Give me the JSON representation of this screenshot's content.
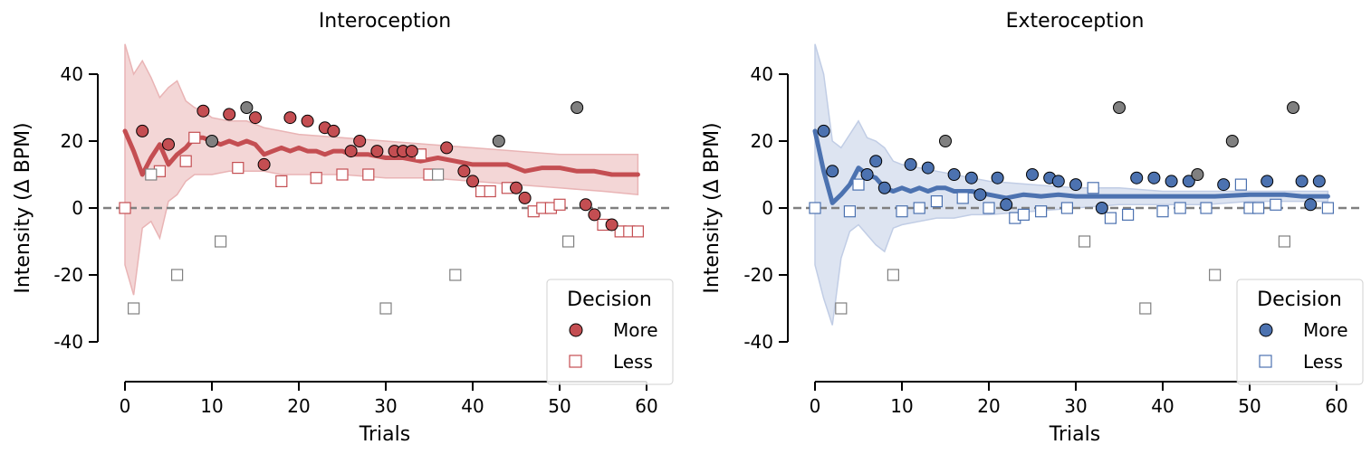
{
  "chart_data": [
    {
      "type": "scatter",
      "title": "Interoception",
      "xlabel": "Trials",
      "ylabel": "Intensity (Δ BPM)",
      "xlim": [
        -2,
        63
      ],
      "ylim": [
        -52,
        50
      ],
      "xticks": [
        0,
        10,
        20,
        30,
        40,
        50,
        60
      ],
      "yticks": [
        -40,
        -20,
        0,
        20,
        40
      ],
      "reference_line_y": 0,
      "legend": {
        "title": "Decision",
        "placement": "lower-right",
        "items": [
          "More",
          "Less"
        ]
      },
      "color": "#c44e52",
      "fill_color": "#e9b4b5",
      "gray_color": "#808080",
      "band": {
        "x": [
          0,
          1,
          2,
          3,
          4,
          5,
          6,
          7,
          8,
          9,
          10,
          12,
          14,
          16,
          18,
          20,
          25,
          30,
          35,
          40,
          45,
          50,
          55,
          59
        ],
        "upper": [
          49,
          40,
          44,
          39,
          33,
          36,
          38,
          32,
          30,
          29,
          27,
          26,
          26,
          24,
          23,
          22,
          21,
          20,
          19,
          18,
          17,
          16,
          16,
          16
        ],
        "lower": [
          -17,
          -26,
          -6,
          -4,
          -9,
          2,
          4,
          8,
          10,
          10,
          10,
          11,
          11,
          11,
          10,
          10,
          10,
          9,
          9,
          8,
          7,
          6,
          5,
          4
        ]
      },
      "mean_line": {
        "x": [
          0,
          1,
          2,
          3,
          4,
          5,
          6,
          7,
          8,
          9,
          10,
          11,
          12,
          13,
          14,
          15,
          16,
          17,
          18,
          19,
          20,
          21,
          22,
          23,
          24,
          25,
          26,
          27,
          28,
          30,
          32,
          34,
          36,
          38,
          40,
          42,
          44,
          46,
          48,
          50,
          52,
          54,
          56,
          58,
          59
        ],
        "y": [
          23,
          17,
          10,
          15,
          19,
          13,
          16,
          18,
          21,
          21,
          20,
          19,
          20,
          19,
          20,
          19,
          16,
          17,
          18,
          17,
          18,
          17,
          17,
          16,
          17,
          17,
          16,
          16,
          16,
          15,
          15,
          14,
          15,
          14,
          13,
          13,
          13,
          11,
          12,
          12,
          11,
          11,
          10,
          10,
          10
        ]
      },
      "more": [
        [
          2,
          23
        ],
        [
          5,
          19
        ],
        [
          9,
          29
        ],
        [
          12,
          28
        ],
        [
          15,
          27
        ],
        [
          16,
          13
        ],
        [
          19,
          27
        ],
        [
          21,
          26
        ],
        [
          23,
          24
        ],
        [
          24,
          23
        ],
        [
          26,
          17
        ],
        [
          27,
          20
        ],
        [
          29,
          17
        ],
        [
          31,
          17
        ],
        [
          32,
          17
        ],
        [
          33,
          17
        ],
        [
          37,
          18
        ],
        [
          39,
          11
        ],
        [
          40,
          8
        ],
        [
          45,
          6
        ],
        [
          46,
          3
        ],
        [
          53,
          1
        ],
        [
          54,
          -2
        ],
        [
          56,
          -5
        ]
      ],
      "less": [
        [
          0,
          0
        ],
        [
          4,
          11
        ],
        [
          7,
          14
        ],
        [
          8,
          21
        ],
        [
          13,
          12
        ],
        [
          18,
          8
        ],
        [
          22,
          9
        ],
        [
          25,
          10
        ],
        [
          28,
          10
        ],
        [
          34,
          16
        ],
        [
          35,
          10
        ],
        [
          41,
          5
        ],
        [
          42,
          5
        ],
        [
          44,
          6
        ],
        [
          47,
          -1
        ],
        [
          48,
          0
        ],
        [
          49,
          0
        ],
        [
          50,
          1
        ],
        [
          55,
          -5
        ],
        [
          57,
          -7
        ],
        [
          58,
          -7
        ],
        [
          59,
          -7
        ]
      ],
      "catch_more": [
        [
          10,
          20
        ],
        [
          14,
          30
        ],
        [
          43,
          20
        ],
        [
          52,
          30
        ]
      ],
      "catch_less": [
        [
          1,
          -30
        ],
        [
          3,
          10
        ],
        [
          6,
          -20
        ],
        [
          11,
          -10
        ],
        [
          30,
          -30
        ],
        [
          36,
          10
        ],
        [
          38,
          -20
        ],
        [
          51,
          -10
        ]
      ]
    },
    {
      "type": "scatter",
      "title": "Exteroception",
      "xlabel": "Trials",
      "ylabel": "Intensity (Δ BPM)",
      "xlim": [
        -2,
        63
      ],
      "ylim": [
        -52,
        50
      ],
      "xticks": [
        0,
        10,
        20,
        30,
        40,
        50,
        60
      ],
      "yticks": [
        -40,
        -20,
        0,
        20,
        40
      ],
      "reference_line_y": 0,
      "legend": {
        "title": "Decision",
        "placement": "lower-right",
        "items": [
          "More",
          "Less"
        ]
      },
      "color": "#4c72b0",
      "fill_color": "#c1cde5",
      "gray_color": "#808080",
      "band": {
        "x": [
          0,
          1,
          2,
          3,
          4,
          5,
          6,
          7,
          8,
          9,
          10,
          12,
          14,
          16,
          18,
          20,
          25,
          30,
          35,
          40,
          45,
          50,
          55,
          59
        ],
        "upper": [
          49,
          40,
          20,
          18,
          22,
          26,
          21,
          20,
          18,
          14,
          13,
          12,
          11,
          10,
          9,
          8,
          7,
          6,
          6,
          5,
          5,
          5,
          5,
          5
        ],
        "lower": [
          -17,
          -27,
          -35,
          -15,
          -7,
          -5,
          -8,
          -11,
          -13,
          -6,
          -5,
          -4,
          -3,
          -3,
          -2,
          -2,
          -1,
          0,
          1,
          1,
          1,
          2,
          2,
          2
        ]
      },
      "mean_line": {
        "x": [
          0,
          1,
          2,
          3,
          4,
          5,
          6,
          7,
          8,
          9,
          10,
          11,
          12,
          13,
          14,
          15,
          16,
          18,
          20,
          22,
          24,
          26,
          28,
          30,
          34,
          38,
          42,
          46,
          50,
          54,
          56,
          58,
          59
        ],
        "y": [
          23,
          11,
          1.5,
          4,
          7,
          12,
          10,
          9,
          6,
          5,
          6,
          5,
          6,
          5,
          6,
          6,
          5,
          5,
          4,
          3,
          4,
          3.5,
          4,
          3.5,
          3.5,
          3.5,
          3.5,
          3.5,
          4,
          4,
          3.5,
          3.5,
          3.5
        ]
      },
      "more": [
        [
          1,
          23
        ],
        [
          2,
          11
        ],
        [
          6,
          10
        ],
        [
          7,
          14
        ],
        [
          8,
          6
        ],
        [
          11,
          13
        ],
        [
          13,
          12
        ],
        [
          16,
          10
        ],
        [
          18,
          9
        ],
        [
          19,
          4
        ],
        [
          21,
          9
        ],
        [
          22,
          1
        ],
        [
          25,
          10
        ],
        [
          27,
          9
        ],
        [
          28,
          8
        ],
        [
          30,
          7
        ],
        [
          33,
          0
        ],
        [
          37,
          9
        ],
        [
          39,
          9
        ],
        [
          41,
          8
        ],
        [
          43,
          8
        ],
        [
          47,
          7
        ],
        [
          52,
          8
        ],
        [
          56,
          8
        ],
        [
          57,
          1
        ],
        [
          58,
          8
        ]
      ],
      "less": [
        [
          0,
          0
        ],
        [
          4,
          -1
        ],
        [
          5,
          7
        ],
        [
          10,
          -1
        ],
        [
          12,
          0
        ],
        [
          14,
          2
        ],
        [
          17,
          3
        ],
        [
          20,
          0
        ],
        [
          23,
          -3
        ],
        [
          24,
          -2
        ],
        [
          26,
          -1
        ],
        [
          29,
          0
        ],
        [
          32,
          6
        ],
        [
          34,
          -3
        ],
        [
          36,
          -2
        ],
        [
          40,
          -1
        ],
        [
          42,
          0
        ],
        [
          45,
          0
        ],
        [
          49,
          7
        ],
        [
          50,
          0
        ],
        [
          51,
          0
        ],
        [
          53,
          1
        ],
        [
          59,
          0
        ]
      ],
      "catch_more": [
        [
          15,
          20
        ],
        [
          35,
          30
        ],
        [
          44,
          10
        ],
        [
          48,
          20
        ],
        [
          55,
          30
        ]
      ],
      "catch_less": [
        [
          3,
          -30
        ],
        [
          9,
          -20
        ],
        [
          31,
          -10
        ],
        [
          38,
          -30
        ],
        [
          46,
          -20
        ],
        [
          54,
          -10
        ]
      ]
    }
  ]
}
